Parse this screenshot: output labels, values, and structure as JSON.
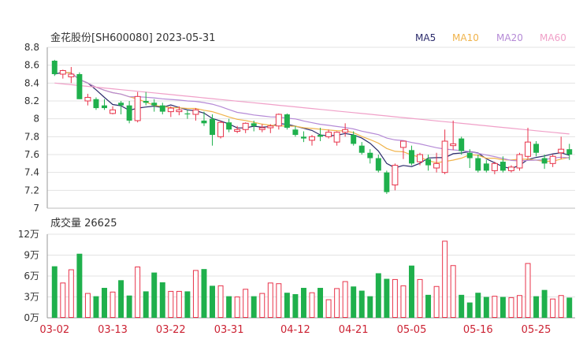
{
  "header": {
    "title": "金花股份[SH600080] 2023-05-31",
    "ma_labels": [
      {
        "text": "MA5",
        "color": "#2b2b6b"
      },
      {
        "text": "MA10",
        "color": "#f0b34a"
      },
      {
        "text": "MA20",
        "color": "#b58ad6"
      },
      {
        "text": "MA60",
        "color": "#f0a0c8"
      }
    ]
  },
  "colors": {
    "up": "#e8334a",
    "down": "#1fb04c",
    "grid": "#e3e3e3",
    "axis": "#333333",
    "xtick": "#cc2233"
  },
  "chart_data": [
    {
      "type": "candlestick",
      "title": "金花股份[SH600080] 2023-05-31",
      "ylim": [
        7,
        8.8
      ],
      "yticks": [
        "8.8",
        "8.6",
        "8.4",
        "8.2",
        "8",
        "7.8",
        "7.6",
        "7.4",
        "7.2",
        "7"
      ],
      "xticks": [
        "03-02",
        "03-13",
        "03-22",
        "03-31",
        "04-12",
        "04-21",
        "05-05",
        "05-16",
        "05-25"
      ],
      "series_names": [
        "MA5",
        "MA10",
        "MA20",
        "MA60"
      ]
    },
    {
      "type": "bar",
      "title": "成交量 26625",
      "ylim": [
        0,
        12
      ],
      "yticks": [
        "12万",
        "9万",
        "6万",
        "3万",
        "0万"
      ],
      "unit": "万"
    }
  ],
  "volume_title": "成交量 26625"
}
